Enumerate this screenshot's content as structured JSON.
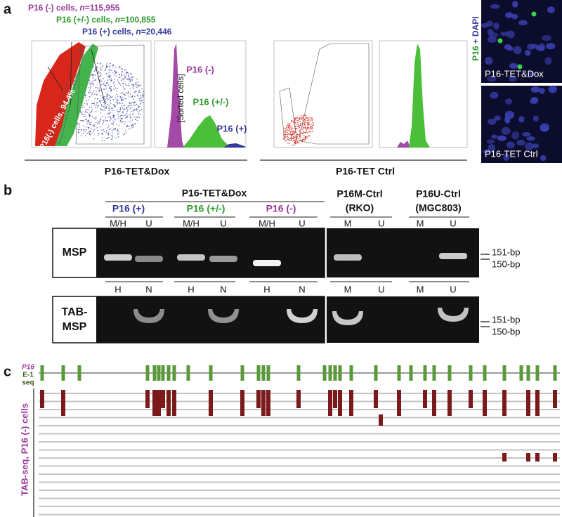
{
  "panel_a": {
    "label": "a",
    "populations": [
      {
        "name": "P16 (-) cells, ",
        "n_symbol": "n",
        "count": "=115,955"
      },
      {
        "name": "P16 (+/-) cells, ",
        "n_symbol": "n",
        "count": "=100,855"
      },
      {
        "name": "P16 (+) cells, ",
        "n_symbol": "n",
        "count": "=20,446"
      }
    ],
    "gate_label": "P16(-) cells, 94.4%",
    "histogram_axis": "[Sorted cells]",
    "histogram_labels": [
      "P16 (-)",
      "P16 (+/-)",
      "P16 (+)"
    ],
    "conditions": [
      "P16-TET&Dox",
      "P16-TET Ctrl"
    ],
    "image_stain": {
      "marker": "P16",
      "counterstain": "+ DAPI"
    },
    "image_labels": [
      "P16-TET&Dox",
      "P16-TET Ctrl"
    ]
  },
  "panel_b": {
    "label": "b",
    "condition": "P16-TET&Dox",
    "groups": [
      "P16 (+)",
      "P16 (+/-)",
      "P16 (-)"
    ],
    "controls": [
      {
        "name": "P16M-Ctrl",
        "line": "(RKO)"
      },
      {
        "name": "P16U-Ctrl",
        "line": "(MGC803)"
      }
    ],
    "msp_lanes": [
      "M/H",
      "U",
      "M/H",
      "U",
      "M/H",
      "U",
      "M",
      "U",
      "M",
      "U"
    ],
    "msp_label": "MSP",
    "tab_lanes": [
      "H",
      "N",
      "H",
      "N",
      "H",
      "N",
      "M",
      "U",
      "M",
      "U"
    ],
    "tab_label": [
      "TAB-",
      "MSP"
    ],
    "size_markers": [
      "151-bp",
      "150-bp"
    ]
  },
  "panel_c": {
    "label": "c",
    "reference": [
      "P16",
      "E-1",
      "seq"
    ],
    "sample_label": "TAB-seq, P16 (-) cells"
  }
}
